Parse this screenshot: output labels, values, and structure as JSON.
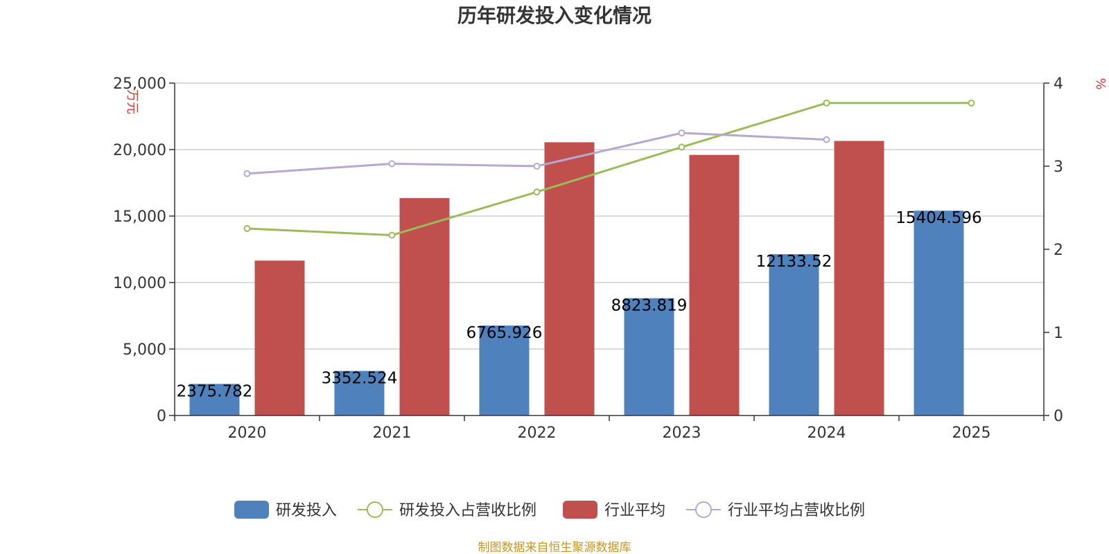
{
  "chart_data": {
    "type": "bar",
    "title": "历年研发投入变化情况",
    "categories": [
      "2020",
      "2021",
      "2022",
      "2023",
      "2024",
      "2025"
    ],
    "left_axis": {
      "unit": "万元",
      "ylim": [
        0,
        25000
      ],
      "ticks": [
        0,
        5000,
        10000,
        15000,
        20000,
        25000
      ],
      "tick_labels": [
        "0",
        "5,000",
        "10,000",
        "15,000",
        "20,000",
        "25,000"
      ]
    },
    "right_axis": {
      "unit": "%",
      "ylim": [
        0,
        4
      ],
      "ticks": [
        0,
        1,
        2,
        3,
        4
      ],
      "tick_labels": [
        "0",
        "1",
        "2",
        "3",
        "4"
      ]
    },
    "series": [
      {
        "name": "研发投入",
        "kind": "bar",
        "axis": "left",
        "color": "#4f81bd",
        "values": [
          2375.782,
          3352.524,
          6765.926,
          8823.819,
          12133.52,
          15404.596
        ],
        "labels": [
          "2375.782",
          "3352.524",
          "6765.926",
          "8823.819",
          "12133.52",
          "15404.596"
        ]
      },
      {
        "name": "研发投入占营收比例",
        "kind": "line",
        "axis": "right",
        "color": "#9bbb59",
        "values": [
          2.25,
          2.17,
          2.69,
          3.23,
          3.76,
          3.76
        ]
      },
      {
        "name": "行业平均",
        "kind": "bar",
        "axis": "left",
        "color": "#c0504d",
        "values": [
          11650,
          16350,
          20550,
          19600,
          20650,
          null
        ]
      },
      {
        "name": "行业平均占营收比例",
        "kind": "line",
        "axis": "right",
        "color": "#b7a8cf",
        "values": [
          2.91,
          3.03,
          3.0,
          3.4,
          3.32,
          null
        ]
      }
    ],
    "legend_position": "bottom-center",
    "source": "制图数据来自恒生聚源数据库"
  }
}
